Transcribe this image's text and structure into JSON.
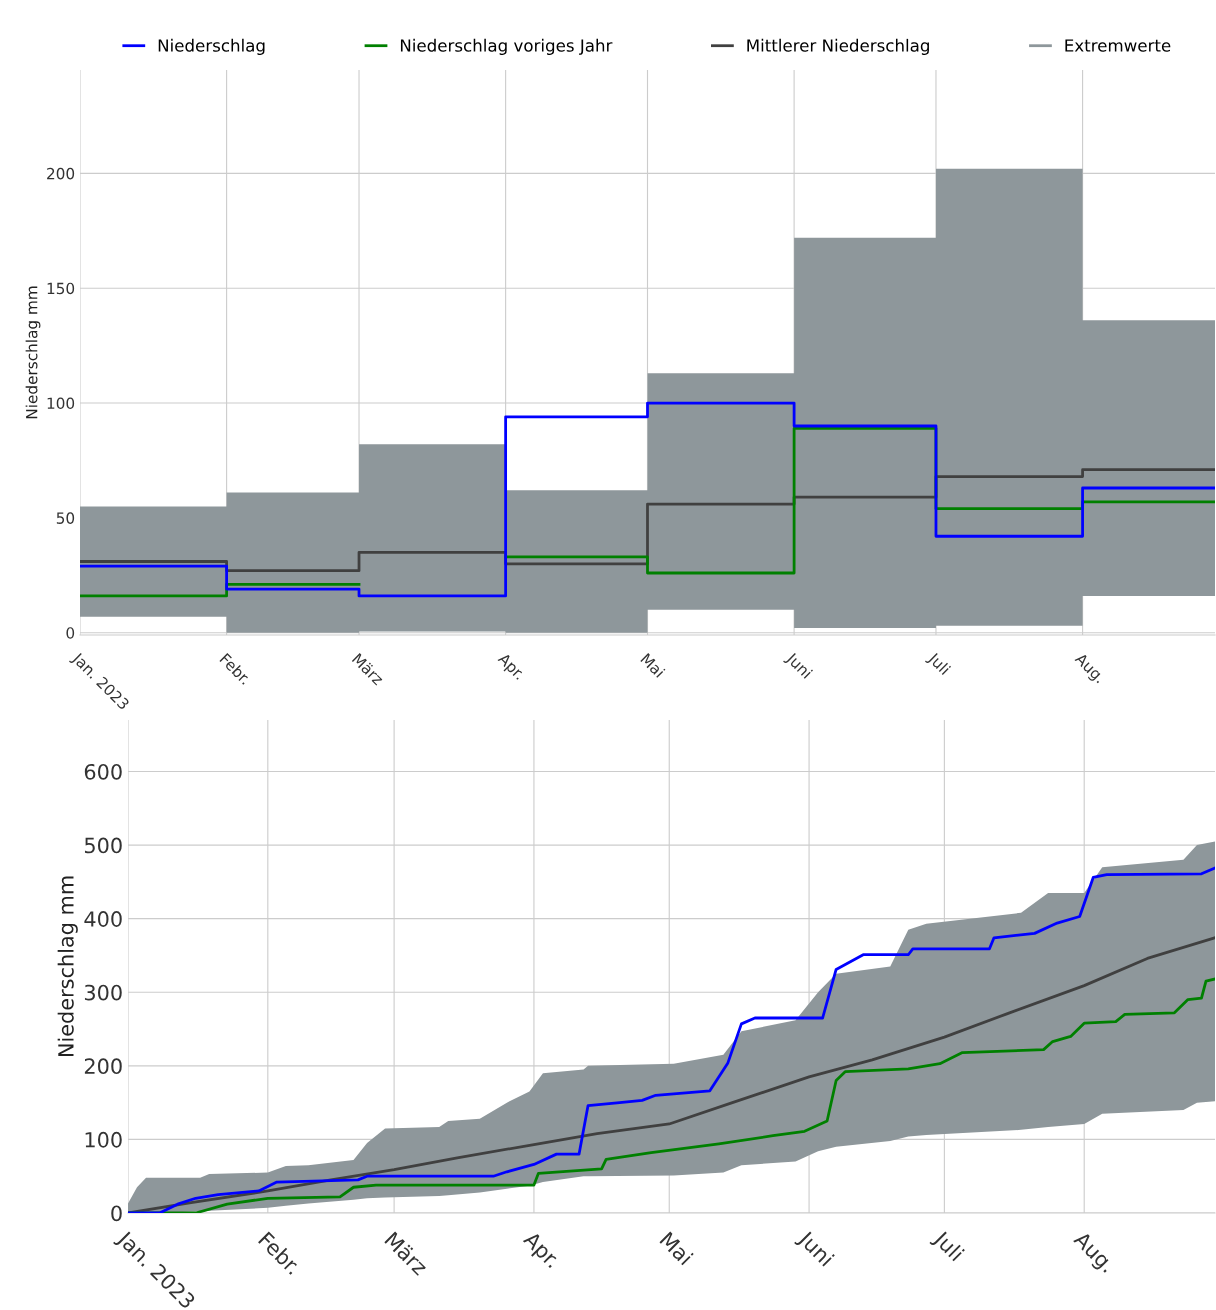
{
  "chart_data": [
    {
      "type": "step",
      "ylabel": "Niederschlag mm",
      "x": [
        "2023-01",
        "2023-02",
        "2023-03",
        "2023-04",
        "2023-05",
        "2023-06",
        "2023-07",
        "2023-08",
        "2023-08-29"
      ],
      "xlim": [
        "2023-01-01",
        "2023-08-29"
      ],
      "ylim": [
        -1,
        245
      ],
      "yticks": [
        0,
        50,
        100,
        150,
        200
      ],
      "xticks": [
        {
          "value": "2023-01-01",
          "label": "Jan. 2023"
        },
        {
          "value": "2023-02-01",
          "label": "Febr."
        },
        {
          "value": "2023-03-01",
          "label": "März"
        },
        {
          "value": "2023-04-01",
          "label": "Apr."
        },
        {
          "value": "2023-05-01",
          "label": "Mai"
        },
        {
          "value": "2023-06-01",
          "label": "Juni"
        },
        {
          "value": "2023-07-01",
          "label": "Juli"
        },
        {
          "value": "2023-08-01",
          "label": "Aug."
        }
      ],
      "grid": true,
      "legend": "top",
      "series": [
        {
          "name": "Extremwerte",
          "color": "#8e979b",
          "values": [
            null,
            null,
            null,
            null,
            null,
            null,
            null,
            null,
            null
          ],
          "upper": [
            55,
            61,
            82,
            62,
            113,
            172,
            202,
            136,
            136
          ],
          "lower": [
            7,
            0,
            0.5,
            0,
            10,
            2,
            3,
            16,
            16
          ]
        },
        {
          "name": "Mittlerer Niederschlag",
          "color": "#404040",
          "values": [
            31,
            27,
            35,
            30,
            56,
            59,
            68,
            71,
            71
          ]
        },
        {
          "name": "Niederschlag voriges Jahr",
          "color": "#008000",
          "values": [
            16,
            21,
            null,
            33,
            26,
            89,
            54,
            57,
            57
          ]
        },
        {
          "name": "Niederschlag",
          "color": "#0000ff",
          "values": [
            29,
            19,
            16,
            94,
            100,
            90,
            42,
            63,
            63
          ]
        }
      ]
    },
    {
      "type": "line",
      "ylabel": "Niederschlag mm",
      "xlim": [
        "2023-01-01",
        "2023-08-30"
      ],
      "ylim": [
        0,
        670
      ],
      "yticks": [
        0,
        100,
        200,
        300,
        400,
        500,
        600
      ],
      "xticks": [
        {
          "value": "2023-01-01",
          "label": "Jan. 2023"
        },
        {
          "value": "2023-02-01",
          "label": "Febr."
        },
        {
          "value": "2023-03-01",
          "label": "März"
        },
        {
          "value": "2023-04-01",
          "label": "Apr."
        },
        {
          "value": "2023-05-01",
          "label": "Mai"
        },
        {
          "value": "2023-06-01",
          "label": "Juni"
        },
        {
          "value": "2023-07-01",
          "label": "Juli"
        },
        {
          "value": "2023-08-01",
          "label": "Aug."
        }
      ],
      "grid": true,
      "series": [
        {
          "color": "#8e979b",
          "x": [
            "2023-01-01",
            "2023-01-03",
            "2023-01-05",
            "2023-01-17",
            "2023-01-19",
            "2023-02-01",
            "2023-02-05",
            "2023-02-10",
            "2023-02-20",
            "2023-02-23",
            "2023-02-27",
            "2023-03-11",
            "2023-03-13",
            "2023-03-20",
            "2023-03-26",
            "2023-03-31",
            "2023-04-03",
            "2023-04-12",
            "2023-04-13",
            "2023-05-02",
            "2023-05-13",
            "2023-05-17",
            "2023-05-29",
            "2023-06-03",
            "2023-06-07",
            "2023-06-19",
            "2023-06-23",
            "2023-06-27",
            "2023-07-18",
            "2023-07-24",
            "2023-08-01",
            "2023-08-05",
            "2023-08-23",
            "2023-08-26",
            "2023-08-30"
          ],
          "values": [
            null,
            null,
            null,
            null,
            null,
            null,
            null,
            null,
            null,
            null,
            null,
            null,
            null,
            null,
            null,
            null,
            null,
            null,
            null,
            null,
            null,
            null,
            null,
            null,
            null,
            null,
            null,
            null,
            null,
            null,
            null,
            null,
            null,
            null,
            null
          ],
          "upper": [
            13,
            35,
            48,
            48,
            53,
            55,
            64,
            65,
            72,
            95,
            115,
            117,
            125,
            128,
            150,
            165,
            190,
            195,
            200,
            203,
            215,
            247,
            262,
            300,
            325,
            335,
            385,
            393,
            408,
            435,
            435,
            470,
            480,
            500,
            505
          ],
          "lower": [
            0,
            0,
            0,
            2,
            3,
            7,
            10,
            13,
            18,
            20,
            21,
            23,
            24,
            28,
            33,
            37,
            42,
            50,
            50,
            51,
            55,
            65,
            70,
            84,
            90,
            98,
            104,
            106,
            113,
            117,
            121,
            135,
            140,
            150,
            152
          ]
        },
        {
          "color": "#404040",
          "x": [
            "2023-01-01",
            "2023-01-15",
            "2023-02-01",
            "2023-02-15",
            "2023-03-01",
            "2023-03-15",
            "2023-04-01",
            "2023-04-15",
            "2023-05-01",
            "2023-05-15",
            "2023-06-01",
            "2023-06-15",
            "2023-07-01",
            "2023-07-15",
            "2023-08-01",
            "2023-08-15",
            "2023-08-30"
          ],
          "values": [
            0,
            14,
            30,
            45,
            59,
            75,
            93,
            108,
            121,
            150,
            185,
            208,
            239,
            271,
            309,
            346,
            374
          ]
        },
        {
          "color": "#008000",
          "x": [
            "2023-01-01",
            "2023-01-16",
            "2023-01-23",
            "2023-02-01",
            "2023-02-17",
            "2023-02-20",
            "2023-02-25",
            "2023-04-01",
            "2023-04-02",
            "2023-04-16",
            "2023-04-17",
            "2023-04-27",
            "2023-05-12",
            "2023-05-24",
            "2023-05-31",
            "2023-06-05",
            "2023-06-07",
            "2023-06-09",
            "2023-06-23",
            "2023-06-30",
            "2023-07-05",
            "2023-07-23",
            "2023-07-25",
            "2023-07-29",
            "2023-08-01",
            "2023-08-08",
            "2023-08-10",
            "2023-08-21",
            "2023-08-24",
            "2023-08-27",
            "2023-08-28",
            "2023-08-30"
          ],
          "values": [
            0,
            0,
            12,
            20,
            22,
            35,
            38,
            38,
            54,
            60,
            73,
            82,
            94,
            105,
            111,
            125,
            180,
            192,
            196,
            203,
            218,
            222,
            233,
            240,
            258,
            260,
            270,
            272,
            290,
            292,
            315,
            318
          ]
        },
        {
          "color": "#0000ff",
          "x": [
            "2023-01-01",
            "2023-01-08",
            "2023-01-12",
            "2023-01-16",
            "2023-01-21",
            "2023-01-30",
            "2023-02-03",
            "2023-02-21",
            "2023-02-23",
            "2023-03-23",
            "2023-03-26",
            "2023-04-01",
            "2023-04-06",
            "2023-04-11",
            "2023-04-13",
            "2023-04-20",
            "2023-04-25",
            "2023-04-28",
            "2023-05-10",
            "2023-05-14",
            "2023-05-17",
            "2023-05-20",
            "2023-06-04",
            "2023-06-07",
            "2023-06-13",
            "2023-06-23",
            "2023-06-24",
            "2023-07-11",
            "2023-07-12",
            "2023-07-21",
            "2023-07-26",
            "2023-07-31",
            "2023-08-03",
            "2023-08-06",
            "2023-08-27",
            "2023-08-30"
          ],
          "values": [
            0,
            0,
            12,
            20,
            25,
            30,
            42,
            45,
            50,
            50,
            56,
            66,
            80,
            80,
            146,
            150,
            153,
            160,
            166,
            204,
            257,
            265,
            265,
            331,
            351,
            351,
            359,
            359,
            374,
            380,
            394,
            403,
            456,
            460,
            461,
            469
          ]
        }
      ]
    }
  ]
}
